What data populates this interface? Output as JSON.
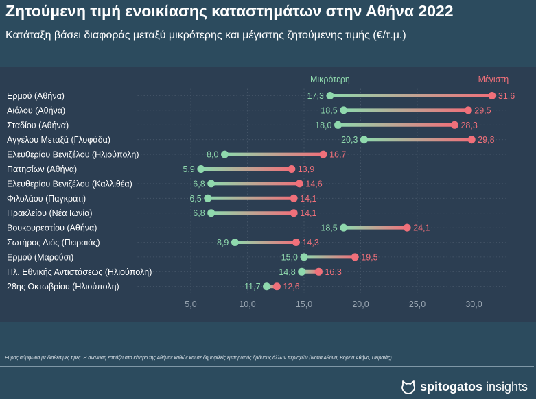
{
  "header": {
    "title": "Ζητούμενη τιμή ενοικίασης καταστημάτων στην Αθήνα 2022",
    "subtitle": "Κατάταξη βάσει διαφοράς μεταξύ μικρότερης και μέγιστης ζητούμενης τιμής (€/τ.μ.)"
  },
  "chart_data": {
    "type": "dumbbell",
    "series": [
      {
        "name": "Μικρότερη",
        "color": "#8fd9ad"
      },
      {
        "name": "Μέγιστη",
        "color": "#f0707a"
      }
    ],
    "xlim": [
      0.3,
      32.8
    ],
    "xticks": [
      "5,0",
      "10,0",
      "15,0",
      "20,0",
      "25,0",
      "30,0"
    ],
    "xtick_values": [
      5,
      10,
      15,
      20,
      25,
      30
    ],
    "grid": true,
    "rows": [
      {
        "label": "Ερμού (Αθήνα)",
        "min": 17.3,
        "max": 31.6,
        "min_label": "17,3",
        "max_label": "31,6"
      },
      {
        "label": "Αιόλου (Αθήνα)",
        "min": 18.5,
        "max": 29.5,
        "min_label": "18,5",
        "max_label": "29,5"
      },
      {
        "label": "Σταδίου (Αθήνα)",
        "min": 18.0,
        "max": 28.3,
        "min_label": "18,0",
        "max_label": "28,3"
      },
      {
        "label": "Αγγέλου Μεταξά (Γλυφάδα)",
        "min": 20.3,
        "max": 29.8,
        "min_label": "20,3",
        "max_label": "29,8"
      },
      {
        "label": "Ελευθερίου Βενιζέλου (Ηλιούπολη)",
        "min": 8.0,
        "max": 16.7,
        "min_label": "8,0",
        "max_label": "16,7"
      },
      {
        "label": "Πατησίων (Αθήνα)",
        "min": 5.9,
        "max": 13.9,
        "min_label": "5,9",
        "max_label": "13,9"
      },
      {
        "label": "Ελευθερίου Βενιζέλου (Καλλιθέα)",
        "min": 6.8,
        "max": 14.6,
        "min_label": "6,8",
        "max_label": "14,6"
      },
      {
        "label": "Φιλολάου (Παγκράτι)",
        "min": 6.5,
        "max": 14.1,
        "min_label": "6,5",
        "max_label": "14,1"
      },
      {
        "label": "Ηρακλείου (Νέα Ιωνία)",
        "min": 6.8,
        "max": 14.1,
        "min_label": "6,8",
        "max_label": "14,1"
      },
      {
        "label": "Βουκουρεστίου (Αθήνα)",
        "min": 18.5,
        "max": 24.1,
        "min_label": "18,5",
        "max_label": "24,1"
      },
      {
        "label": "Σωτήρος Διός (Πειραιάς)",
        "min": 8.9,
        "max": 14.3,
        "min_label": "8,9",
        "max_label": "14,3"
      },
      {
        "label": "Ερμού (Μαρούσι)",
        "min": 15.0,
        "max": 19.5,
        "min_label": "15,0",
        "max_label": "19,5"
      },
      {
        "label": "Πλ. Εθνικής Αντιστάσεως (Ηλιούπολη)",
        "min": 14.8,
        "max": 16.3,
        "min_label": "14,8",
        "max_label": "16,3"
      },
      {
        "label": "28ης Οκτωβρίου (Ηλιούπολη)",
        "min": 11.7,
        "max": 12.6,
        "min_label": "11,7",
        "max_label": "12,6"
      }
    ]
  },
  "footer": {
    "note": "Εύρος σύμφωνα με διαθέσιμες τιμές. Η ανάλυση εστιάζει στο κέντρο της Αθήνας καθώς και σε δημοφιλείς εμπορικούς δρόμους άλλων περιοχών (Νότια Αθήνα, Βόρεια Αθήνα, Πειραιάς).",
    "brand_bold": "spitogatos",
    "brand_light": "insights"
  }
}
